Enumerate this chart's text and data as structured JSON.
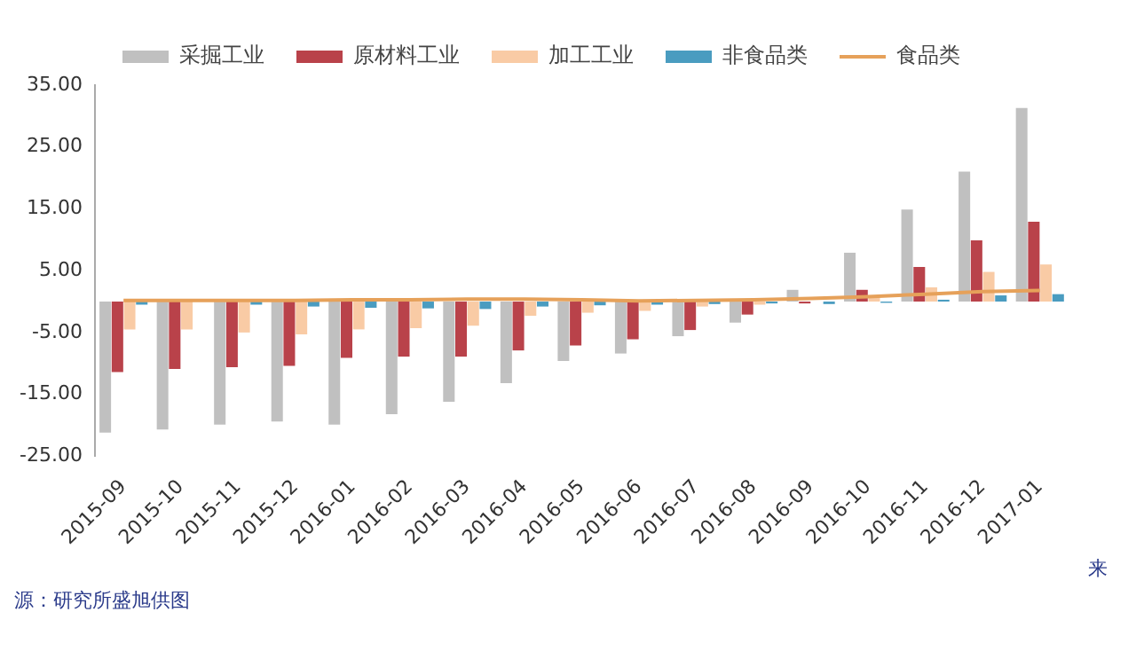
{
  "chart_data": {
    "type": "bar",
    "categories": [
      "2015-09",
      "2015-10",
      "2015-11",
      "2015-12",
      "2016-01",
      "2016-02",
      "2016-03",
      "2016-04",
      "2016-05",
      "2016-06",
      "2016-07",
      "2016-08",
      "2016-09",
      "2016-10",
      "2016-11",
      "2016-12",
      "2017-01"
    ],
    "series": [
      {
        "name": "采掘工业",
        "color": "#c0c0c0",
        "values": [
          -21.2,
          -20.7,
          -19.9,
          -19.4,
          -19.9,
          -18.2,
          -16.2,
          -13.2,
          -9.6,
          -8.4,
          -5.6,
          -3.4,
          1.9,
          7.9,
          14.9,
          21,
          31.3
        ]
      },
      {
        "name": "原材料工业",
        "color": "#b9424a",
        "values": [
          -11.4,
          -10.9,
          -10.6,
          -10.4,
          -9.1,
          -8.9,
          -8.9,
          -7.9,
          -7.1,
          -6.1,
          -4.6,
          -2.1,
          -0.3,
          1.9,
          5.6,
          9.9,
          12.9
        ]
      },
      {
        "name": "加工工业",
        "color": "#f9cba5",
        "values": [
          -4.5,
          -4.5,
          -5,
          -5.3,
          -4.5,
          -4.3,
          -3.9,
          -2.3,
          -1.8,
          -1.5,
          -0.8,
          -0.5,
          null,
          0.8,
          2.3,
          4.8,
          6
        ]
      },
      {
        "name": "非食品类",
        "color": "#4a9cc0",
        "values": [
          -0.5,
          null,
          -0.5,
          -0.8,
          -1,
          -1.1,
          -1.2,
          -0.8,
          -0.6,
          -0.5,
          -0.4,
          -0.3,
          -0.4,
          -0.2,
          0.3,
          1,
          1.2
        ]
      },
      {
        "name": "食品类",
        "type": "line",
        "color": "#e6a15a",
        "values": [
          0.2,
          0.2,
          0.2,
          0.2,
          0.3,
          0.3,
          0.4,
          0.4,
          0.3,
          0.1,
          0.2,
          0.3,
          0.5,
          0.8,
          1.2,
          1.6,
          1.8
        ]
      }
    ],
    "ylim": [
      -25,
      35
    ],
    "yticks": [
      {
        "value": -25,
        "label": "-25.00"
      },
      {
        "value": -15,
        "label": "-15.00"
      },
      {
        "value": -5,
        "label": "-5.00"
      },
      {
        "value": 5,
        "label": "5.00"
      },
      {
        "value": 15,
        "label": "15.00"
      },
      {
        "value": 25,
        "label": "25.00"
      },
      {
        "value": 35,
        "label": "35.00"
      }
    ],
    "grid": false,
    "legend": "top",
    "marker": "none",
    "line_style": "solid",
    "annotations": [
      "来",
      "源：研究所盛旭供图"
    ]
  }
}
